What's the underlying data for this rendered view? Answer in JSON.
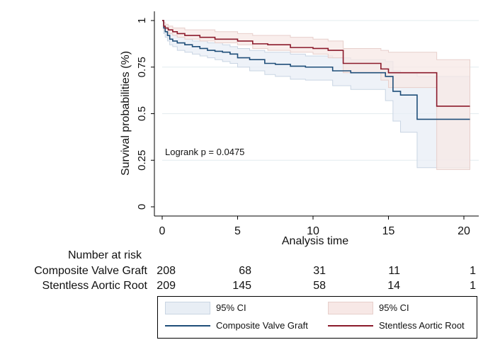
{
  "chart_data": {
    "type": "line",
    "subtype": "kaplan-meier",
    "xlabel": "Analysis time",
    "ylabel": "Survival probabilities (%)",
    "xlim": [
      0,
      21
    ],
    "ylim": [
      0,
      1
    ],
    "xticks": [
      0,
      5,
      10,
      15,
      20
    ],
    "yticks": [
      0,
      0.25,
      0.5,
      0.75,
      1
    ],
    "ytick_labels": [
      "0",
      "0.25",
      "0.5",
      "0.75",
      "1"
    ],
    "annotation": "Logrank p = 0.0475",
    "grid": "horizontal",
    "series": [
      {
        "name": "Composite Valve Graft",
        "color": "#1f4e79",
        "ci_color": "#e8eef5",
        "x": [
          0,
          0.1,
          0.2,
          0.35,
          0.5,
          0.7,
          1.0,
          1.5,
          2.0,
          2.5,
          3.0,
          3.5,
          4.0,
          4.5,
          5.0,
          5.8,
          6.8,
          7.5,
          8.5,
          9.5,
          11.3,
          12.5,
          14.8,
          15.3,
          15.8,
          16.9,
          20.4
        ],
        "y": [
          1.0,
          0.96,
          0.94,
          0.92,
          0.9,
          0.89,
          0.88,
          0.87,
          0.86,
          0.85,
          0.84,
          0.835,
          0.83,
          0.82,
          0.8,
          0.79,
          0.77,
          0.765,
          0.755,
          0.75,
          0.73,
          0.72,
          0.7,
          0.62,
          0.6,
          0.47,
          0.47
        ],
        "ci_lower": [
          1.0,
          0.93,
          0.91,
          0.89,
          0.87,
          0.86,
          0.84,
          0.83,
          0.82,
          0.81,
          0.8,
          0.79,
          0.78,
          0.77,
          0.75,
          0.73,
          0.71,
          0.7,
          0.685,
          0.68,
          0.65,
          0.63,
          0.57,
          0.46,
          0.4,
          0.21,
          0.21
        ],
        "ci_upper": [
          1.0,
          0.98,
          0.97,
          0.95,
          0.93,
          0.92,
          0.91,
          0.9,
          0.89,
          0.89,
          0.88,
          0.88,
          0.87,
          0.86,
          0.85,
          0.84,
          0.83,
          0.83,
          0.82,
          0.81,
          0.8,
          0.79,
          0.78,
          0.73,
          0.72,
          0.7,
          0.7
        ]
      },
      {
        "name": "Stentless Aortic Root",
        "color": "#8b1a2b",
        "ci_color": "#f7e8e6",
        "x": [
          0,
          0.1,
          0.2,
          0.4,
          0.7,
          1.0,
          1.5,
          2.5,
          3.5,
          5.0,
          6.0,
          7.0,
          8.5,
          10.0,
          11.0,
          12.0,
          14.5,
          15.0,
          18.2,
          20.4
        ],
        "y": [
          1.0,
          0.97,
          0.96,
          0.95,
          0.94,
          0.93,
          0.92,
          0.91,
          0.9,
          0.89,
          0.875,
          0.87,
          0.855,
          0.85,
          0.84,
          0.77,
          0.74,
          0.72,
          0.54,
          0.54
        ],
        "ci_lower": [
          1.0,
          0.95,
          0.94,
          0.93,
          0.92,
          0.91,
          0.9,
          0.89,
          0.88,
          0.87,
          0.85,
          0.84,
          0.83,
          0.82,
          0.8,
          0.72,
          0.68,
          0.64,
          0.2,
          0.2
        ],
        "ci_upper": [
          1.0,
          0.99,
          0.98,
          0.97,
          0.96,
          0.96,
          0.95,
          0.95,
          0.94,
          0.93,
          0.92,
          0.92,
          0.91,
          0.9,
          0.89,
          0.85,
          0.84,
          0.83,
          0.79,
          0.79
        ]
      }
    ]
  },
  "risk_table": {
    "title": "Number at risk",
    "rows": [
      {
        "label": "Composite Valve Graft",
        "values": [
          "208",
          "68",
          "31",
          "11",
          "1"
        ]
      },
      {
        "label": "Stentless Aortic Root",
        "values": [
          "209",
          "145",
          "58",
          "14",
          "1"
        ]
      }
    ]
  },
  "legend": {
    "ci_label_1": "95% CI",
    "ci_label_2": "95% CI",
    "series_label_1": "Composite Valve Graft",
    "series_label_2": "Stentless Aortic Root"
  }
}
